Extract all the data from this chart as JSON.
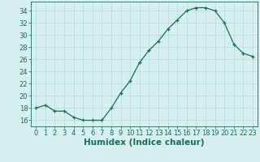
{
  "x": [
    0,
    1,
    2,
    3,
    4,
    5,
    6,
    7,
    8,
    9,
    10,
    11,
    12,
    13,
    14,
    15,
    16,
    17,
    18,
    19,
    20,
    21,
    22,
    23
  ],
  "y": [
    18,
    18.5,
    17.5,
    17.5,
    16.5,
    16,
    16,
    16,
    18,
    20.5,
    22.5,
    25.5,
    27.5,
    29,
    31,
    32.5,
    34,
    34.5,
    34.5,
    34,
    32,
    28.5,
    27,
    26.5
  ],
  "xlabel": "Humidex (Indice chaleur)",
  "xlim": [
    -0.5,
    23.5
  ],
  "ylim": [
    15,
    35.5
  ],
  "yticks": [
    16,
    18,
    20,
    22,
    24,
    26,
    28,
    30,
    32,
    34
  ],
  "xticks": [
    0,
    1,
    2,
    3,
    4,
    5,
    6,
    7,
    8,
    9,
    10,
    11,
    12,
    13,
    14,
    15,
    16,
    17,
    18,
    19,
    20,
    21,
    22,
    23
  ],
  "line_color": "#1a6b5a",
  "bg_color": "#d6f0f0",
  "grid_color": "#b8d8d8",
  "tick_label_fontsize": 6.0,
  "xlabel_fontsize": 7.5
}
